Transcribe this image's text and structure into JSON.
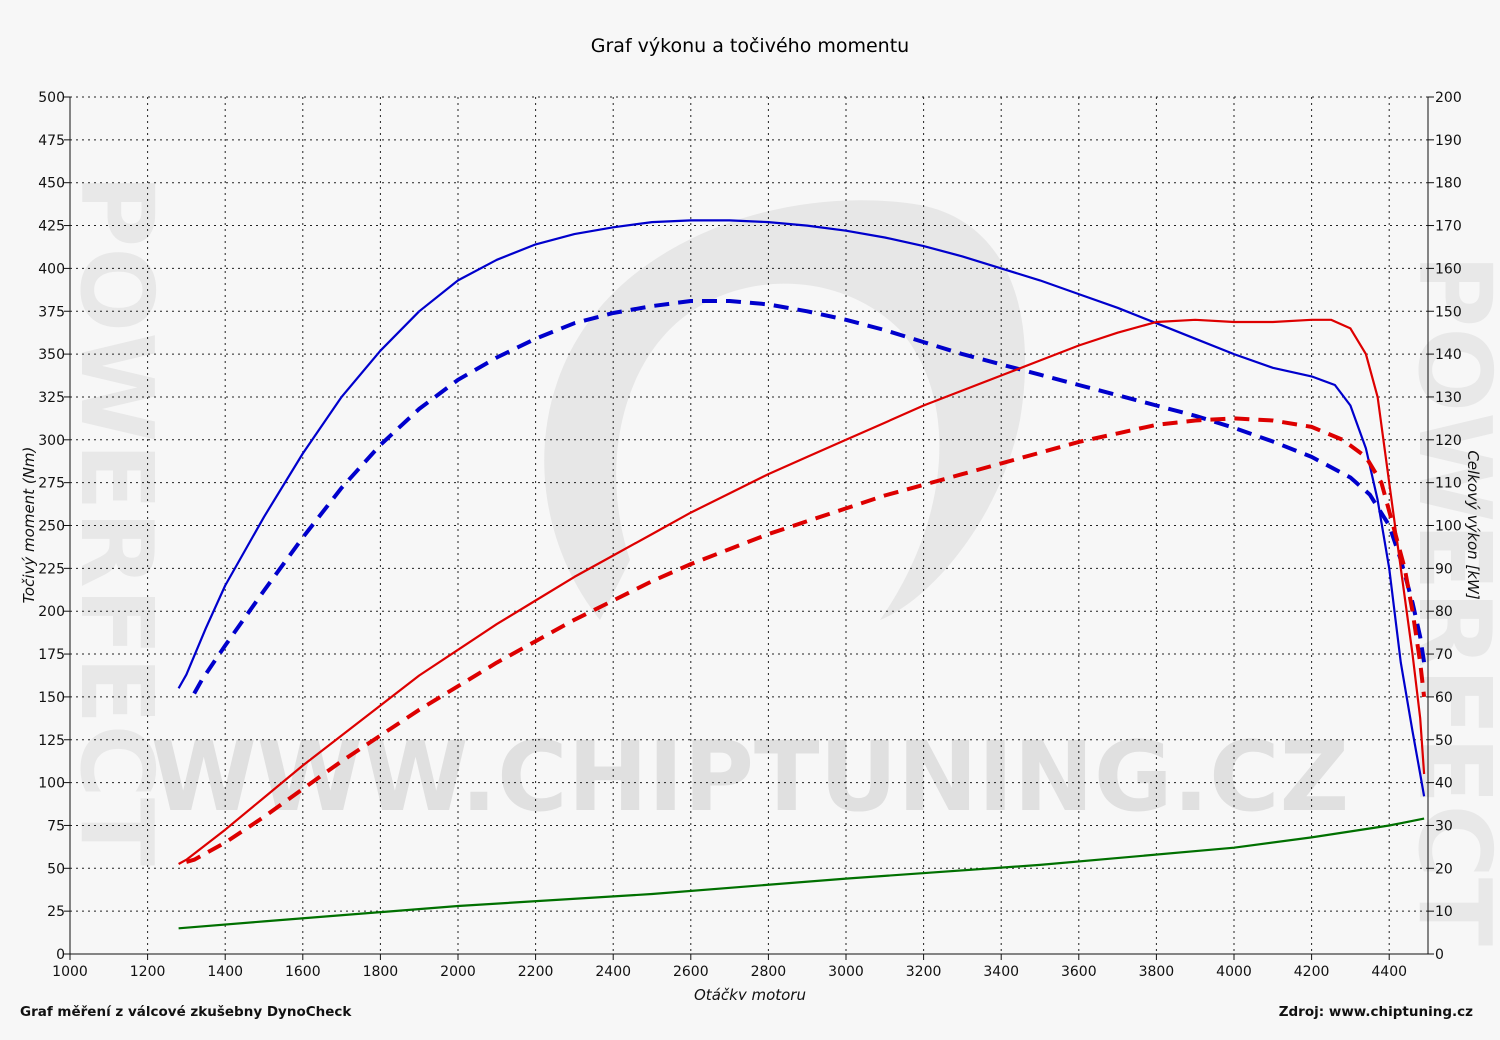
{
  "chart_data": {
    "type": "line",
    "title": "Graf výkonu a točivého momentu",
    "xlabel": "Otáčky motoru",
    "ylabel_left": "Točivý moment (Nm)",
    "ylabel_right": "Celkový výkon [kW]",
    "xlim": [
      1000,
      4500
    ],
    "ylim_left": [
      0,
      500
    ],
    "ylim_right": [
      0,
      200
    ],
    "x_ticks": [
      "1000",
      "1200",
      "1400",
      "1600",
      "1800",
      "2000",
      "2200",
      "2400",
      "2600",
      "2800",
      "3000",
      "3200",
      "3400",
      "3600",
      "3800",
      "4000",
      "4200",
      "4400"
    ],
    "y_ticks_left": [
      "0",
      "25",
      "50",
      "75",
      "100",
      "125",
      "150",
      "175",
      "200",
      "225",
      "250",
      "275",
      "300",
      "325",
      "350",
      "375",
      "400",
      "425",
      "450",
      "475",
      "500"
    ],
    "y_ticks_right": [
      "0",
      "10",
      "20",
      "30",
      "40",
      "50",
      "60",
      "70",
      "80",
      "90",
      "100",
      "110",
      "120",
      "130",
      "140",
      "150",
      "160",
      "170",
      "180",
      "190",
      "200"
    ],
    "grid": true,
    "series": [
      {
        "axis": "left",
        "color": "#0000cc",
        "style": "solid",
        "points": [
          [
            1280,
            155
          ],
          [
            1300,
            163
          ],
          [
            1350,
            190
          ],
          [
            1400,
            215
          ],
          [
            1500,
            255
          ],
          [
            1600,
            292
          ],
          [
            1700,
            325
          ],
          [
            1800,
            352
          ],
          [
            1900,
            375
          ],
          [
            2000,
            393
          ],
          [
            2100,
            405
          ],
          [
            2200,
            414
          ],
          [
            2300,
            420
          ],
          [
            2400,
            424
          ],
          [
            2500,
            427
          ],
          [
            2600,
            428
          ],
          [
            2700,
            428
          ],
          [
            2800,
            427
          ],
          [
            2900,
            425
          ],
          [
            3000,
            422
          ],
          [
            3100,
            418
          ],
          [
            3200,
            413
          ],
          [
            3300,
            407
          ],
          [
            3400,
            400
          ],
          [
            3500,
            393
          ],
          [
            3600,
            385
          ],
          [
            3700,
            377
          ],
          [
            3800,
            368
          ],
          [
            3900,
            359
          ],
          [
            4000,
            350
          ],
          [
            4100,
            342
          ],
          [
            4200,
            337
          ],
          [
            4260,
            332
          ],
          [
            4300,
            320
          ],
          [
            4340,
            295
          ],
          [
            4370,
            265
          ],
          [
            4400,
            225
          ],
          [
            4430,
            170
          ],
          [
            4460,
            130
          ],
          [
            4480,
            105
          ],
          [
            4490,
            92
          ]
        ]
      },
      {
        "axis": "left",
        "color": "#0000cc",
        "style": "dashed",
        "points": [
          [
            1320,
            152
          ],
          [
            1340,
            160
          ],
          [
            1400,
            180
          ],
          [
            1500,
            212
          ],
          [
            1600,
            243
          ],
          [
            1700,
            272
          ],
          [
            1800,
            297
          ],
          [
            1900,
            318
          ],
          [
            2000,
            335
          ],
          [
            2100,
            348
          ],
          [
            2200,
            359
          ],
          [
            2300,
            368
          ],
          [
            2400,
            374
          ],
          [
            2500,
            378
          ],
          [
            2600,
            381
          ],
          [
            2700,
            381
          ],
          [
            2800,
            379
          ],
          [
            2900,
            375
          ],
          [
            3000,
            370
          ],
          [
            3100,
            364
          ],
          [
            3200,
            357
          ],
          [
            3300,
            350
          ],
          [
            3400,
            344
          ],
          [
            3500,
            338
          ],
          [
            3600,
            332
          ],
          [
            3700,
            326
          ],
          [
            3800,
            320
          ],
          [
            3900,
            314
          ],
          [
            4000,
            307
          ],
          [
            4100,
            299
          ],
          [
            4200,
            290
          ],
          [
            4300,
            278
          ],
          [
            4350,
            268
          ],
          [
            4400,
            250
          ],
          [
            4430,
            230
          ],
          [
            4460,
            205
          ],
          [
            4480,
            185
          ],
          [
            4490,
            170
          ]
        ]
      },
      {
        "axis": "right",
        "color": "#dd0000",
        "style": "solid",
        "points": [
          [
            1280,
            21
          ],
          [
            1300,
            22
          ],
          [
            1400,
            29
          ],
          [
            1500,
            36.5
          ],
          [
            1600,
            44
          ],
          [
            1700,
            51
          ],
          [
            1800,
            58
          ],
          [
            1900,
            65
          ],
          [
            2000,
            71
          ],
          [
            2100,
            77
          ],
          [
            2200,
            82.5
          ],
          [
            2300,
            88
          ],
          [
            2400,
            93
          ],
          [
            2500,
            98
          ],
          [
            2600,
            103
          ],
          [
            2700,
            107.5
          ],
          [
            2800,
            112
          ],
          [
            2900,
            116
          ],
          [
            3000,
            120
          ],
          [
            3100,
            124
          ],
          [
            3200,
            128
          ],
          [
            3300,
            131.5
          ],
          [
            3400,
            135
          ],
          [
            3500,
            138.5
          ],
          [
            3600,
            142
          ],
          [
            3700,
            145
          ],
          [
            3800,
            147.5
          ],
          [
            3900,
            148
          ],
          [
            4000,
            147.5
          ],
          [
            4100,
            147.5
          ],
          [
            4200,
            148
          ],
          [
            4250,
            148
          ],
          [
            4300,
            146
          ],
          [
            4340,
            140
          ],
          [
            4370,
            130
          ],
          [
            4400,
            110
          ],
          [
            4430,
            90
          ],
          [
            4460,
            70
          ],
          [
            4480,
            55
          ],
          [
            4490,
            42
          ]
        ]
      },
      {
        "axis": "right",
        "color": "#dd0000",
        "style": "dashed",
        "points": [
          [
            1300,
            21.5
          ],
          [
            1320,
            22
          ],
          [
            1400,
            26
          ],
          [
            1500,
            32
          ],
          [
            1600,
            38.5
          ],
          [
            1700,
            45
          ],
          [
            1800,
            51
          ],
          [
            1900,
            57
          ],
          [
            2000,
            62.5
          ],
          [
            2100,
            68
          ],
          [
            2200,
            73
          ],
          [
            2300,
            78
          ],
          [
            2400,
            82.5
          ],
          [
            2500,
            87
          ],
          [
            2600,
            91
          ],
          [
            2700,
            94.5
          ],
          [
            2800,
            98
          ],
          [
            2900,
            101
          ],
          [
            3000,
            104
          ],
          [
            3100,
            107
          ],
          [
            3200,
            109.5
          ],
          [
            3300,
            112
          ],
          [
            3400,
            114.5
          ],
          [
            3500,
            117
          ],
          [
            3600,
            119.5
          ],
          [
            3700,
            121.5
          ],
          [
            3800,
            123.5
          ],
          [
            3900,
            124.5
          ],
          [
            4000,
            125
          ],
          [
            4100,
            124.5
          ],
          [
            4200,
            123
          ],
          [
            4280,
            120
          ],
          [
            4340,
            116
          ],
          [
            4380,
            110
          ],
          [
            4410,
            100
          ],
          [
            4440,
            90
          ],
          [
            4460,
            80
          ],
          [
            4480,
            68
          ],
          [
            4490,
            60
          ]
        ]
      },
      {
        "axis": "left",
        "color": "#007000",
        "style": "solid",
        "points": [
          [
            1280,
            15
          ],
          [
            1500,
            19
          ],
          [
            2000,
            28
          ],
          [
            2500,
            35
          ],
          [
            3000,
            44
          ],
          [
            3500,
            52
          ],
          [
            4000,
            62
          ],
          [
            4200,
            68
          ],
          [
            4400,
            75
          ],
          [
            4490,
            79
          ]
        ]
      }
    ]
  },
  "watermark": {
    "text": "WWW.CHIPTUNING.CZ",
    "side_text": "POWERFECT"
  },
  "footer": {
    "left": "Graf měření z válcové zkušebny DynoCheck",
    "right": "Zdroj: www.chiptuning.cz"
  }
}
